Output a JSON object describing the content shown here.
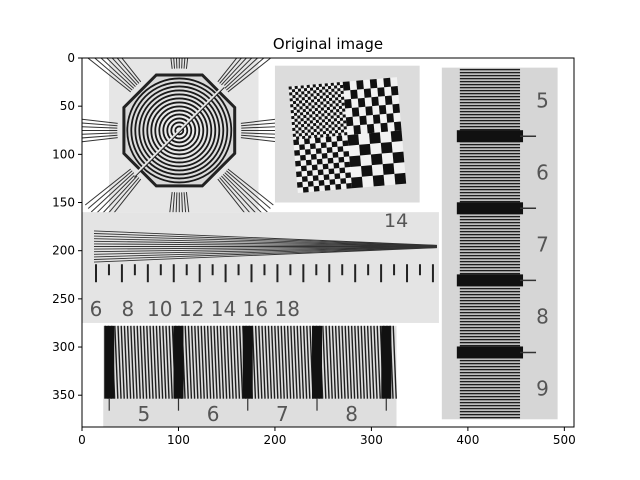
{
  "chart_data": {
    "type": "image",
    "title": "Original image",
    "xlabel": "",
    "ylabel": "",
    "xlim": [
      0,
      510
    ],
    "ylim": [
      383,
      0
    ],
    "x_ticks": [
      0,
      100,
      200,
      300,
      400,
      500
    ],
    "y_ticks": [
      0,
      50,
      100,
      150,
      200,
      250,
      300,
      350
    ],
    "grid": false,
    "image_patches": [
      {
        "name": "concentric-rings",
        "extent": [
          28,
          183,
          0,
          160
        ]
      },
      {
        "name": "checkerboard",
        "extent": [
          200,
          350,
          8,
          150
        ]
      },
      {
        "name": "vertical-ruler",
        "extent": [
          373,
          493,
          10,
          375
        ],
        "numbers": [
          "5",
          "6",
          "7",
          "8",
          "9"
        ]
      },
      {
        "name": "wedge-ruler",
        "extent": [
          0,
          370,
          160,
          275
        ],
        "numbers": [
          "14",
          "6",
          "8",
          "10",
          "12",
          "14",
          "16",
          "18"
        ]
      },
      {
        "name": "bar-ruler",
        "extent": [
          22,
          326,
          278,
          383
        ],
        "numbers": [
          "5",
          "6",
          "7",
          "8"
        ]
      }
    ]
  }
}
